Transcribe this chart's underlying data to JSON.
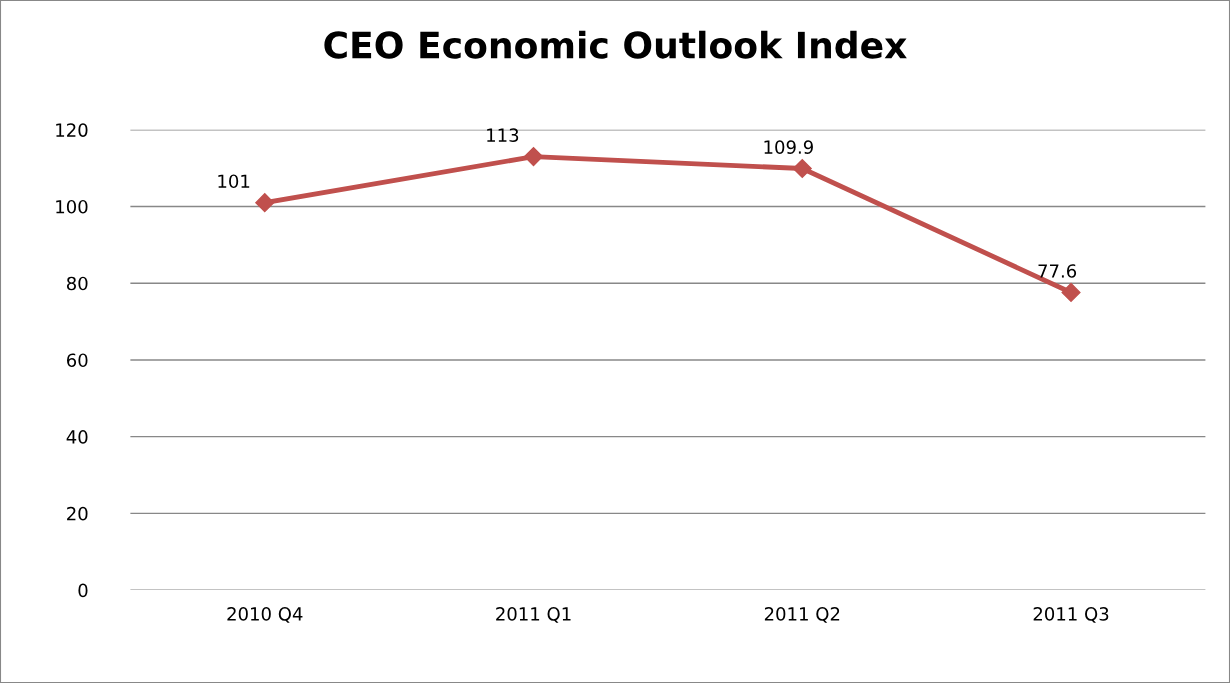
{
  "chart_data": {
    "type": "line",
    "title": "CEO Economic Outlook Index",
    "categories": [
      "2010 Q4",
      "2011 Q1",
      "2011 Q2",
      "2011 Q3"
    ],
    "series": [
      {
        "color": "#c0504d",
        "values": [
          101,
          113,
          109.9,
          77.6
        ]
      }
    ],
    "ylim": [
      0,
      120
    ],
    "yticks": [
      0,
      20,
      40,
      60,
      80,
      100,
      120
    ],
    "grid": "y",
    "marker": "diamond",
    "line_style": "solid",
    "data_labels": true,
    "legend": false
  }
}
